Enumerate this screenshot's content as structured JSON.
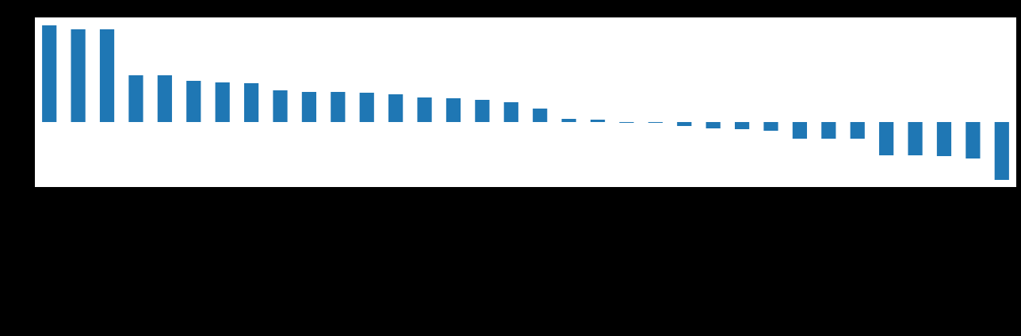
{
  "chart_data": {
    "type": "bar",
    "categories": [
      null,
      null,
      null,
      null,
      null,
      null,
      null,
      null,
      null,
      null,
      null,
      null,
      null,
      null,
      null,
      null,
      null,
      null,
      null,
      null,
      null,
      null,
      null,
      null,
      null,
      null,
      null,
      null,
      null,
      null,
      null,
      null,
      null,
      null
    ],
    "values": [
      1.22,
      1.17,
      1.17,
      0.59,
      0.59,
      0.52,
      0.5,
      0.49,
      0.4,
      0.38,
      0.38,
      0.37,
      0.35,
      0.31,
      0.3,
      0.28,
      0.25,
      0.17,
      0.04,
      0.03,
      -0.01,
      -0.01,
      -0.05,
      -0.08,
      -0.09,
      -0.11,
      -0.21,
      -0.21,
      -0.21,
      -0.42,
      -0.42,
      -0.43,
      -0.46,
      -0.73
    ],
    "color": "#1f77b4",
    "ylim": [
      -0.82,
      1.32
    ]
  }
}
